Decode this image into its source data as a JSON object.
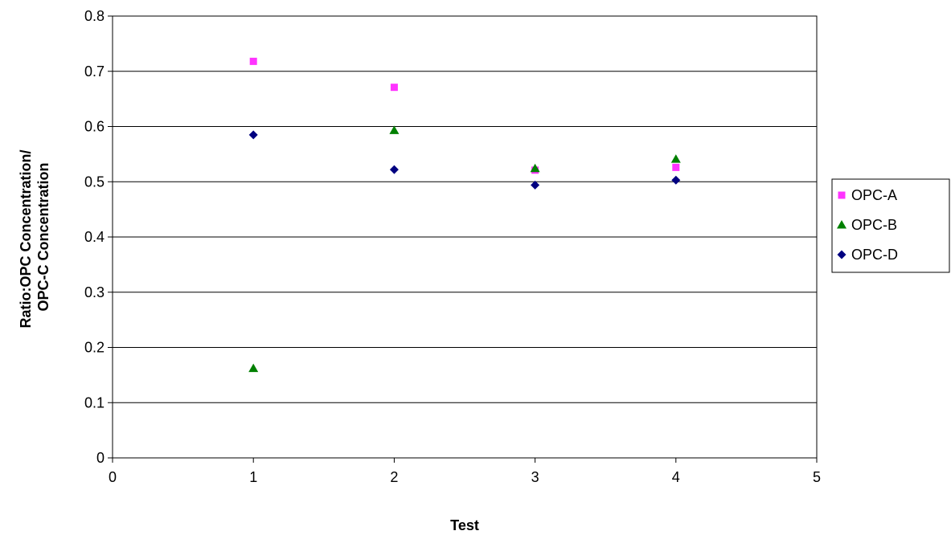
{
  "chart_data": {
    "type": "scatter",
    "title": "",
    "xlabel": "Test",
    "ylabel": [
      "Ratio:OPC Concentration/",
      "OPC-C Concentration"
    ],
    "xlim": [
      0,
      5
    ],
    "ylim": [
      0,
      0.8
    ],
    "x_ticks": [
      "0",
      "1",
      "2",
      "3",
      "4",
      "5"
    ],
    "y_ticks": [
      "0",
      "0.1",
      "0.2",
      "0.3",
      "0.4",
      "0.5",
      "0.6",
      "0.7",
      "0.8"
    ],
    "grid": "horizontal",
    "legend_position": "right",
    "series": [
      {
        "name": "OPC-A",
        "marker": "square",
        "color": "#ff33ff",
        "x": [
          1,
          2,
          3,
          4
        ],
        "y": [
          0.718,
          0.671,
          0.521,
          0.526
        ]
      },
      {
        "name": "OPC-B",
        "marker": "triangle",
        "color": "#008000",
        "x": [
          1,
          2,
          3,
          4
        ],
        "y": [
          0.162,
          0.593,
          0.524,
          0.541
        ]
      },
      {
        "name": "OPC-D",
        "marker": "diamond",
        "color": "#000080",
        "x": [
          1,
          2,
          3,
          4
        ],
        "y": [
          0.585,
          0.522,
          0.494,
          0.503
        ]
      }
    ]
  }
}
